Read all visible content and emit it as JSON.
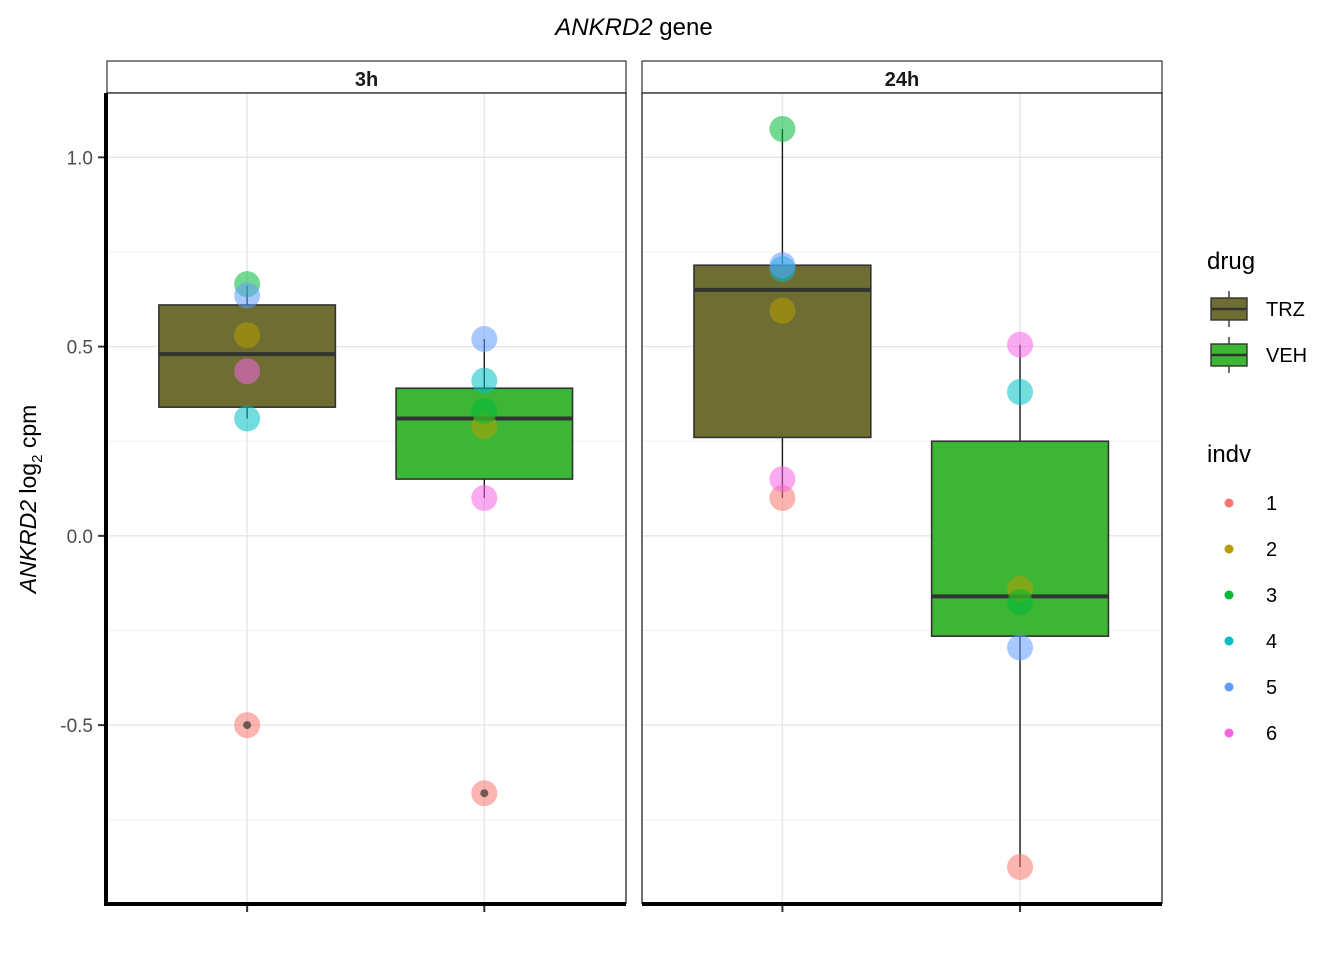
{
  "chart_data": {
    "type": "box",
    "title_italic": "ANKRD2",
    "title_rest": " gene",
    "ylabel_italic": "ANKRD2",
    "ylabel_rest": " log",
    "ylabel_sub": "2",
    "ylabel_tail": " cpm",
    "ylim": [
      -0.97,
      1.17
    ],
    "yticks": [
      -0.5,
      0.0,
      0.5,
      1.0
    ],
    "ytick_labels": [
      "-0.5",
      "0.0",
      "0.5",
      "1.0"
    ],
    "x_categories": [
      "TRZ",
      "VEH"
    ],
    "grid": true,
    "legend_position": "right",
    "drug_legend": {
      "title": "drug",
      "items": [
        {
          "label": "TRZ",
          "color": "#6e6e32"
        },
        {
          "label": "VEH",
          "color": "#3db535"
        }
      ]
    },
    "indv_legend": {
      "title": "indv",
      "items": [
        {
          "label": "1",
          "color": "#F8766D"
        },
        {
          "label": "2",
          "color": "#B79F00"
        },
        {
          "label": "3",
          "color": "#00BA38"
        },
        {
          "label": "4",
          "color": "#00BFC4"
        },
        {
          "label": "5",
          "color": "#619CFF"
        },
        {
          "label": "6",
          "color": "#F564E3"
        }
      ]
    },
    "panels": [
      {
        "label": "3h",
        "boxes": [
          {
            "drug": "TRZ",
            "q1": 0.34,
            "median": 0.48,
            "q3": 0.61,
            "whisker_low": 0.31,
            "whisker_high": 0.66,
            "outliers": [
              -0.5
            ],
            "points": [
              {
                "indv": "1",
                "y": -0.5
              },
              {
                "indv": "2",
                "y": 0.53
              },
              {
                "indv": "3",
                "y": 0.665
              },
              {
                "indv": "4",
                "y": 0.31
              },
              {
                "indv": "5",
                "y": 0.635
              },
              {
                "indv": "6",
                "y": 0.435
              }
            ]
          },
          {
            "drug": "VEH",
            "q1": 0.15,
            "median": 0.31,
            "q3": 0.39,
            "whisker_low": 0.1,
            "whisker_high": 0.52,
            "outliers": [
              -0.68
            ],
            "points": [
              {
                "indv": "1",
                "y": -0.68
              },
              {
                "indv": "2",
                "y": 0.29
              },
              {
                "indv": "3",
                "y": 0.33
              },
              {
                "indv": "4",
                "y": 0.41
              },
              {
                "indv": "5",
                "y": 0.52
              },
              {
                "indv": "6",
                "y": 0.1
              }
            ]
          }
        ]
      },
      {
        "label": "24h",
        "boxes": [
          {
            "drug": "TRZ",
            "q1": 0.26,
            "median": 0.65,
            "q3": 0.715,
            "whisker_low": 0.1,
            "whisker_high": 1.075,
            "outliers": [],
            "points": [
              {
                "indv": "1",
                "y": 0.1
              },
              {
                "indv": "2",
                "y": 0.595
              },
              {
                "indv": "3",
                "y": 1.075
              },
              {
                "indv": "4",
                "y": 0.705
              },
              {
                "indv": "5",
                "y": 0.715
              },
              {
                "indv": "6",
                "y": 0.15
              }
            ]
          },
          {
            "drug": "VEH",
            "q1": -0.265,
            "median": -0.16,
            "q3": 0.25,
            "whisker_low": -0.875,
            "whisker_high": 0.505,
            "outliers": [],
            "points": [
              {
                "indv": "1",
                "y": -0.875
              },
              {
                "indv": "2",
                "y": -0.14
              },
              {
                "indv": "3",
                "y": -0.175
              },
              {
                "indv": "4",
                "y": 0.38
              },
              {
                "indv": "5",
                "y": -0.295
              },
              {
                "indv": "6",
                "y": 0.505
              }
            ]
          }
        ]
      }
    ]
  }
}
